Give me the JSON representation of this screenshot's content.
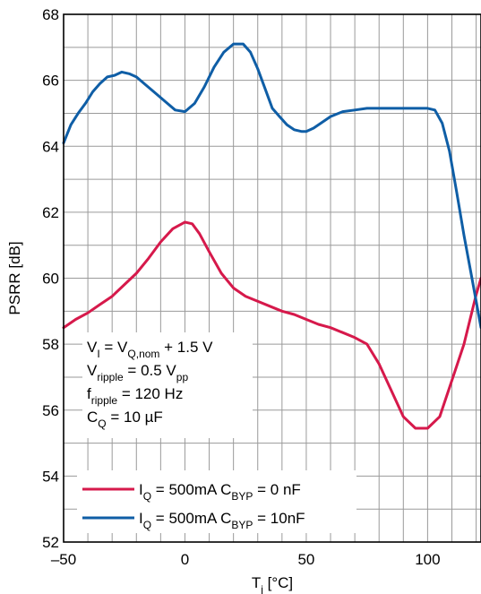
{
  "chart_data": {
    "type": "line",
    "xlabel": {
      "main": "T",
      "sub": "j",
      "unit": " [°C]"
    },
    "ylabel": "PSRR [dB]",
    "xlim": [
      -50,
      122
    ],
    "ylim": [
      52,
      68
    ],
    "x_ticks": [
      -50,
      0,
      50,
      100
    ],
    "x_tick_labels": [
      "–50",
      "0",
      "50",
      "100"
    ],
    "y_ticks": [
      52,
      54,
      56,
      58,
      60,
      62,
      64,
      66,
      68
    ],
    "x_minor_step": 10,
    "y_minor_step": 1,
    "grid": true,
    "conditions": [
      {
        "parts": [
          [
            "V",
            ""
          ],
          [
            "I",
            "sub"
          ],
          [
            " = V",
            ""
          ],
          [
            "Q,nom",
            "sub"
          ],
          [
            " + 1.5 V",
            ""
          ]
        ]
      },
      {
        "parts": [
          [
            "V",
            ""
          ],
          [
            "ripple",
            "sub"
          ],
          [
            " = 0.5 V",
            ""
          ],
          [
            "pp",
            "sub"
          ]
        ]
      },
      {
        "parts": [
          [
            "f",
            ""
          ],
          [
            "ripple",
            "sub"
          ],
          [
            " = 120 Hz",
            ""
          ]
        ]
      },
      {
        "parts": [
          [
            "C",
            ""
          ],
          [
            "Q",
            "sub"
          ],
          [
            " = 10 µF",
            ""
          ]
        ]
      }
    ],
    "series": [
      {
        "label_parts": [
          [
            "I",
            ""
          ],
          [
            "Q",
            "sub"
          ],
          [
            " = 500mA C",
            ""
          ],
          [
            "BYP",
            "sub"
          ],
          [
            " = 0 nF",
            ""
          ]
        ],
        "color": "#d6194b",
        "x": [
          -50,
          -45,
          -40,
          -35,
          -30,
          -25,
          -20,
          -15,
          -10,
          -5,
          0,
          3,
          6,
          10,
          15,
          20,
          25,
          30,
          35,
          40,
          45,
          50,
          55,
          60,
          65,
          70,
          75,
          80,
          85,
          90,
          95,
          100,
          105,
          110,
          115,
          120,
          122
        ],
        "y": [
          58.5,
          58.75,
          58.95,
          59.2,
          59.45,
          59.8,
          60.15,
          60.6,
          61.1,
          61.5,
          61.7,
          61.65,
          61.35,
          60.8,
          60.15,
          59.7,
          59.45,
          59.3,
          59.15,
          59.0,
          58.9,
          58.75,
          58.6,
          58.5,
          58.35,
          58.2,
          58.0,
          57.4,
          56.6,
          55.8,
          55.45,
          55.45,
          55.8,
          56.9,
          58.0,
          59.5,
          60.0
        ]
      },
      {
        "label_parts": [
          [
            "I",
            ""
          ],
          [
            "Q",
            "sub"
          ],
          [
            " = 500mA C",
            ""
          ],
          [
            "BYP",
            "sub"
          ],
          [
            " = 10nF",
            ""
          ]
        ],
        "color": "#0f5ea6",
        "x": [
          -50,
          -47,
          -44,
          -41,
          -38,
          -35,
          -32,
          -29,
          -26,
          -23,
          -20,
          -16,
          -12,
          -8,
          -4,
          0,
          4,
          8,
          12,
          16,
          20,
          24,
          27,
          30,
          33,
          36,
          39,
          42,
          45,
          48,
          50,
          53,
          56,
          60,
          65,
          70,
          75,
          80,
          85,
          90,
          95,
          100,
          103,
          106,
          109,
          112,
          115,
          118,
          122
        ],
        "y": [
          64.1,
          64.65,
          65.0,
          65.3,
          65.65,
          65.9,
          66.1,
          66.15,
          66.25,
          66.2,
          66.1,
          65.85,
          65.6,
          65.35,
          65.1,
          65.05,
          65.3,
          65.8,
          66.4,
          66.85,
          67.1,
          67.1,
          66.85,
          66.35,
          65.75,
          65.15,
          64.9,
          64.65,
          64.5,
          64.45,
          64.45,
          64.55,
          64.7,
          64.9,
          65.05,
          65.1,
          65.15,
          65.15,
          65.15,
          65.15,
          65.15,
          65.15,
          65.1,
          64.7,
          63.85,
          62.6,
          61.3,
          60.1,
          58.5
        ]
      }
    ]
  }
}
